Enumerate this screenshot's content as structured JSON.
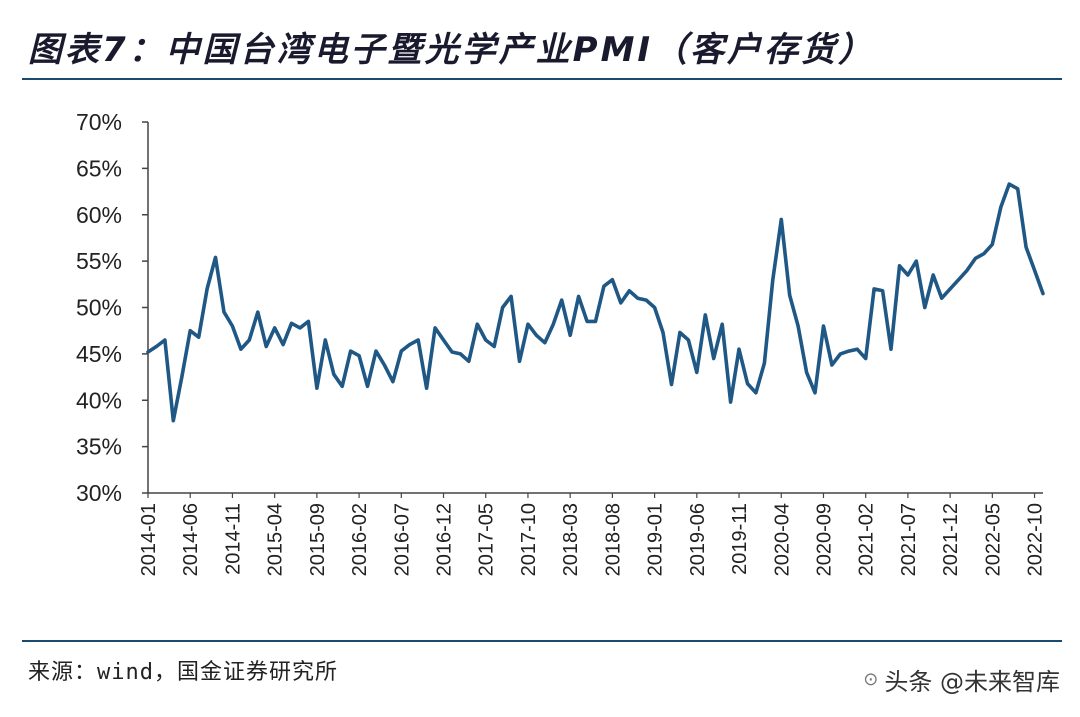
{
  "page": {
    "title": "图表7：中国台湾电子暨光学产业PMI（客户存货）",
    "source": "来源：wind，国金证券研究所",
    "watermark": "头条 @未来智库"
  },
  "colors": {
    "line": "#1f5785",
    "axis": "#444444",
    "rule": "#1c4a6e",
    "text": "#222222"
  },
  "chart_data": {
    "type": "line",
    "title": "图表7：中国台湾电子暨光学产业PMI（客户存货）",
    "xlabel": "",
    "ylabel": "",
    "ylim": [
      30,
      70
    ],
    "yticks": [
      30,
      35,
      40,
      45,
      50,
      55,
      60,
      65,
      70
    ],
    "ytick_labels": [
      "30%",
      "35%",
      "40%",
      "45%",
      "50%",
      "55%",
      "60%",
      "65%",
      "70%"
    ],
    "x_tick_labels": [
      "2014-01",
      "2014-06",
      "2014-11",
      "2015-04",
      "2015-09",
      "2016-02",
      "2016-07",
      "2016-12",
      "2017-05",
      "2017-10",
      "2018-03",
      "2018-08",
      "2019-01",
      "2019-06",
      "2019-11",
      "2020-04",
      "2020-09",
      "2021-02",
      "2021-07",
      "2021-12",
      "2022-05",
      "2022-10"
    ],
    "grid": false,
    "legend": "none",
    "series": [
      {
        "x": [
          "2014-01",
          "2014-02",
          "2014-03",
          "2014-04",
          "2014-05",
          "2014-06",
          "2014-07",
          "2014-08",
          "2014-09",
          "2014-10",
          "2014-11",
          "2014-12",
          "2015-01",
          "2015-02",
          "2015-03",
          "2015-04",
          "2015-05",
          "2015-06",
          "2015-07",
          "2015-08",
          "2015-09",
          "2015-10",
          "2015-11",
          "2015-12",
          "2016-01",
          "2016-02",
          "2016-03",
          "2016-04",
          "2016-05",
          "2016-06",
          "2016-07",
          "2016-08",
          "2016-09",
          "2016-10",
          "2016-11",
          "2016-12",
          "2017-01",
          "2017-02",
          "2017-03",
          "2017-04",
          "2017-05",
          "2017-06",
          "2017-07",
          "2017-08",
          "2017-09",
          "2017-10",
          "2017-11",
          "2017-12",
          "2018-01",
          "2018-02",
          "2018-03",
          "2018-04",
          "2018-05",
          "2018-06",
          "2018-07",
          "2018-08",
          "2018-09",
          "2018-10",
          "2018-11",
          "2018-12",
          "2019-01",
          "2019-02",
          "2019-03",
          "2019-04",
          "2019-05",
          "2019-06",
          "2019-07",
          "2019-08",
          "2019-09",
          "2019-10",
          "2019-11",
          "2019-12",
          "2020-01",
          "2020-02",
          "2020-03",
          "2020-04",
          "2020-05",
          "2020-06",
          "2020-07",
          "2020-08",
          "2020-09",
          "2020-10",
          "2020-11",
          "2020-12",
          "2021-01",
          "2021-02",
          "2021-03",
          "2021-04",
          "2021-05",
          "2021-06",
          "2021-07",
          "2021-08",
          "2021-09",
          "2021-10",
          "2021-11",
          "2021-12",
          "2022-01",
          "2022-02",
          "2022-03",
          "2022-04",
          "2022-05",
          "2022-06",
          "2022-07",
          "2022-08",
          "2022-09",
          "2022-10",
          "2022-11"
        ],
        "values": [
          45.2,
          45.8,
          46.5,
          37.8,
          42.5,
          47.5,
          46.8,
          52.0,
          55.4,
          49.5,
          48.0,
          45.5,
          46.5,
          49.5,
          45.8,
          47.8,
          46.0,
          48.3,
          47.8,
          48.5,
          41.3,
          46.5,
          42.8,
          41.5,
          45.3,
          44.8,
          41.5,
          45.3,
          43.8,
          42.0,
          45.3,
          46.0,
          46.5,
          41.3,
          47.8,
          46.5,
          45.2,
          45.0,
          44.2,
          48.2,
          46.5,
          45.8,
          50.0,
          51.2,
          44.2,
          48.2,
          47.0,
          46.2,
          48.2,
          50.8,
          47.0,
          51.2,
          48.5,
          48.5,
          52.3,
          53.0,
          50.5,
          51.8,
          51.0,
          50.8,
          50.0,
          47.3,
          41.7,
          47.3,
          46.5,
          43.0,
          49.2,
          44.5,
          48.2,
          39.8,
          45.5,
          41.8,
          40.8,
          44.0,
          53.0,
          59.5,
          51.3,
          48.0,
          43.0,
          40.8,
          48.0,
          43.8,
          45.0,
          45.3,
          45.5,
          44.5,
          52.0,
          51.8,
          45.5,
          54.5,
          53.5,
          55.0,
          50.0,
          53.5,
          51.0,
          52.0,
          53.0,
          54.0,
          55.3,
          55.8,
          56.8,
          60.8,
          63.3,
          62.8,
          56.5,
          54.0,
          51.5
        ]
      }
    ]
  }
}
